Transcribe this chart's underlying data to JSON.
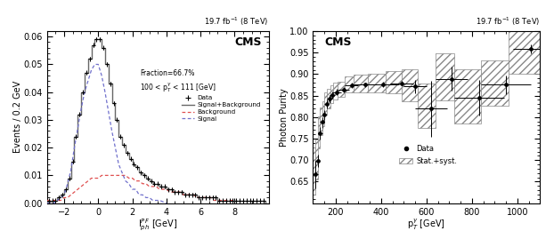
{
  "left": {
    "title": "CMS",
    "lumi": "19.7 fb$^{-1}$ (8 TeV)",
    "annotation_line1": "Fraction=66.7%",
    "annotation_line2": "100 < p$_{T}^{\\gamma}$ < 111 [GeV]",
    "xlabel": "I$_{ph}^{PF}$ [GeV]",
    "ylabel": "Events / 0.2 GeV",
    "xlim": [
      -3,
      10
    ],
    "ylim": [
      0,
      0.062
    ],
    "yticks": [
      0,
      0.01,
      0.02,
      0.03,
      0.04,
      0.05,
      0.06
    ],
    "xticks": [
      -2,
      0,
      2,
      4,
      6,
      8
    ],
    "data_x": [
      -2.9,
      -2.7,
      -2.5,
      -2.3,
      -2.1,
      -1.9,
      -1.7,
      -1.5,
      -1.3,
      -1.1,
      -0.9,
      -0.7,
      -0.5,
      -0.3,
      -0.1,
      0.1,
      0.3,
      0.5,
      0.7,
      0.9,
      1.1,
      1.3,
      1.5,
      1.7,
      1.9,
      2.1,
      2.3,
      2.5,
      2.7,
      2.9,
      3.1,
      3.3,
      3.5,
      3.7,
      3.9,
      4.1,
      4.3,
      4.5,
      4.7,
      4.9,
      5.1,
      5.3,
      5.5,
      5.7,
      5.9,
      6.1,
      6.3,
      6.5,
      6.7,
      6.9,
      7.1,
      7.3,
      7.5,
      7.7,
      7.9,
      8.1,
      8.3,
      8.5,
      8.7,
      8.9,
      9.1,
      9.3,
      9.5,
      9.7
    ],
    "data_y": [
      0.001,
      0.001,
      0.001,
      0.002,
      0.003,
      0.005,
      0.009,
      0.015,
      0.024,
      0.032,
      0.04,
      0.047,
      0.052,
      0.057,
      0.059,
      0.059,
      0.056,
      0.05,
      0.043,
      0.036,
      0.03,
      0.024,
      0.021,
      0.018,
      0.016,
      0.014,
      0.013,
      0.011,
      0.01,
      0.009,
      0.008,
      0.007,
      0.007,
      0.006,
      0.006,
      0.005,
      0.005,
      0.004,
      0.004,
      0.004,
      0.003,
      0.003,
      0.003,
      0.003,
      0.002,
      0.002,
      0.002,
      0.002,
      0.002,
      0.002,
      0.001,
      0.001,
      0.001,
      0.001,
      0.001,
      0.001,
      0.001,
      0.001,
      0.001,
      0.001,
      0.001,
      0.001,
      0.001,
      0.001
    ],
    "sig_bg_bins": [
      -3.0,
      -2.8,
      -2.6,
      -2.4,
      -2.2,
      -2.0,
      -1.8,
      -1.6,
      -1.4,
      -1.2,
      -1.0,
      -0.8,
      -0.6,
      -0.4,
      -0.2,
      0.0,
      0.2,
      0.4,
      0.6,
      0.8,
      1.0,
      1.2,
      1.4,
      1.6,
      1.8,
      2.0,
      2.2,
      2.4,
      2.6,
      2.8,
      3.0,
      3.2,
      3.4,
      3.6,
      3.8,
      4.0,
      4.2,
      4.4,
      4.6,
      4.8,
      5.0,
      5.2,
      5.4,
      5.6,
      5.8,
      6.0,
      6.2,
      6.4,
      6.6,
      6.8,
      7.0,
      7.2,
      7.4,
      7.6,
      7.8,
      8.0,
      8.2,
      8.4,
      8.6,
      8.8,
      9.0,
      9.2,
      9.4,
      9.6,
      9.8
    ],
    "sig_bg_vals": [
      0.0005,
      0.001,
      0.001,
      0.002,
      0.003,
      0.005,
      0.009,
      0.015,
      0.024,
      0.032,
      0.04,
      0.047,
      0.052,
      0.057,
      0.059,
      0.059,
      0.056,
      0.05,
      0.043,
      0.036,
      0.03,
      0.024,
      0.021,
      0.018,
      0.016,
      0.014,
      0.013,
      0.011,
      0.01,
      0.009,
      0.008,
      0.007,
      0.007,
      0.006,
      0.006,
      0.005,
      0.005,
      0.004,
      0.004,
      0.004,
      0.003,
      0.003,
      0.003,
      0.003,
      0.002,
      0.002,
      0.002,
      0.002,
      0.002,
      0.002,
      0.001,
      0.001,
      0.001,
      0.001,
      0.001,
      0.001,
      0.001,
      0.001,
      0.001,
      0.001,
      0.001,
      0.001,
      0.001,
      0.001
    ],
    "bg_x": [
      -3,
      -2.8,
      -2.6,
      -2.4,
      -2.2,
      -2.0,
      -1.8,
      -1.6,
      -1.4,
      -1.2,
      -1.0,
      -0.8,
      -0.6,
      -0.4,
      -0.2,
      0.0,
      0.2,
      0.4,
      0.6,
      0.8,
      1.0,
      1.2,
      1.4,
      1.6,
      1.8,
      2.0,
      2.2,
      2.4,
      2.6,
      2.8,
      3.0,
      3.2,
      3.4,
      3.6,
      3.8,
      4.0,
      4.2,
      4.4,
      4.6,
      4.8,
      5.0,
      5.2,
      5.4,
      5.6,
      5.8,
      6.0,
      6.2,
      6.4,
      6.6,
      6.8,
      7.0,
      7.2,
      7.4,
      7.6,
      7.8,
      8.0
    ],
    "bg_y": [
      0.001,
      0.001,
      0.001,
      0.001,
      0.001,
      0.002,
      0.002,
      0.003,
      0.004,
      0.005,
      0.006,
      0.007,
      0.008,
      0.009,
      0.009,
      0.009,
      0.01,
      0.01,
      0.01,
      0.01,
      0.01,
      0.01,
      0.01,
      0.01,
      0.009,
      0.009,
      0.008,
      0.008,
      0.007,
      0.007,
      0.006,
      0.006,
      0.006,
      0.005,
      0.005,
      0.005,
      0.004,
      0.004,
      0.004,
      0.004,
      0.003,
      0.003,
      0.003,
      0.003,
      0.002,
      0.002,
      0.002,
      0.002,
      0.002,
      0.001,
      0.001,
      0.001,
      0.001,
      0.001,
      0.001,
      0.001
    ],
    "sig_x": [
      -3,
      -2.8,
      -2.6,
      -2.4,
      -2.2,
      -2.0,
      -1.8,
      -1.6,
      -1.4,
      -1.2,
      -1.0,
      -0.8,
      -0.6,
      -0.4,
      -0.2,
      0.0,
      0.2,
      0.4,
      0.6,
      0.8,
      1.0,
      1.2,
      1.4,
      1.6,
      1.8,
      2.0,
      2.2,
      2.4,
      2.6,
      2.8,
      3.0,
      3.2,
      3.4,
      3.6,
      3.8,
      4.0
    ],
    "sig_y": [
      0.0,
      0.0,
      0.0,
      0.001,
      0.002,
      0.003,
      0.007,
      0.012,
      0.02,
      0.027,
      0.034,
      0.04,
      0.044,
      0.048,
      0.05,
      0.05,
      0.046,
      0.04,
      0.033,
      0.026,
      0.02,
      0.014,
      0.011,
      0.008,
      0.007,
      0.005,
      0.005,
      0.003,
      0.003,
      0.002,
      0.002,
      0.001,
      0.001,
      0.001,
      0.0005,
      0.0
    ]
  },
  "right": {
    "title": "CMS",
    "lumi": "19.7 fb$^{-1}$ (8 TeV)",
    "xlabel": "p$_{T}^{\\gamma}$ [GeV]",
    "ylabel": "Photon Purity",
    "xlim": [
      100,
      1100
    ],
    "ylim": [
      0.6,
      1.0
    ],
    "yticks": [
      0.65,
      0.7,
      0.75,
      0.8,
      0.85,
      0.9,
      0.95,
      1.0
    ],
    "xticks": [
      200,
      400,
      600,
      800,
      1000
    ],
    "data_x": [
      110,
      120,
      130,
      140,
      150,
      160,
      172,
      185,
      205,
      235,
      270,
      330,
      410,
      490,
      550,
      620,
      710,
      830,
      950,
      1060
    ],
    "data_y": [
      0.667,
      0.698,
      0.763,
      0.789,
      0.806,
      0.831,
      0.842,
      0.851,
      0.858,
      0.863,
      0.874,
      0.875,
      0.876,
      0.879,
      0.871,
      0.82,
      0.889,
      0.845,
      0.875,
      0.958
    ],
    "data_xerr_lo": [
      10,
      10,
      10,
      10,
      10,
      10,
      12,
      12,
      20,
      25,
      30,
      50,
      70,
      50,
      50,
      70,
      70,
      110,
      110,
      80
    ],
    "data_xerr_hi": [
      10,
      10,
      10,
      10,
      10,
      10,
      12,
      12,
      20,
      25,
      30,
      50,
      70,
      50,
      50,
      70,
      70,
      110,
      110,
      80
    ],
    "data_yerr_lo": [
      0.032,
      0.015,
      0.014,
      0.014,
      0.012,
      0.01,
      0.009,
      0.009,
      0.007,
      0.006,
      0.006,
      0.006,
      0.006,
      0.006,
      0.016,
      0.065,
      0.028,
      0.042,
      0.022,
      0.01
    ],
    "data_yerr_hi": [
      0.032,
      0.015,
      0.014,
      0.01,
      0.01,
      0.009,
      0.009,
      0.009,
      0.007,
      0.006,
      0.006,
      0.006,
      0.006,
      0.006,
      0.016,
      0.065,
      0.028,
      0.042,
      0.022,
      0.01
    ],
    "band_x": [
      100,
      110,
      120,
      130,
      140,
      150,
      160,
      175,
      190,
      210,
      240,
      280,
      340,
      420,
      490,
      560,
      640,
      720,
      840,
      960
    ],
    "band_x2": [
      110,
      120,
      130,
      140,
      150,
      160,
      175,
      190,
      210,
      240,
      280,
      340,
      420,
      490,
      560,
      640,
      720,
      840,
      960,
      1150
    ],
    "band_lo": [
      0.62,
      0.655,
      0.728,
      0.758,
      0.778,
      0.808,
      0.82,
      0.832,
      0.84,
      0.848,
      0.858,
      0.858,
      0.858,
      0.855,
      0.836,
      0.775,
      0.838,
      0.785,
      0.826,
      0.9
    ],
    "band_hi": [
      0.73,
      0.748,
      0.802,
      0.822,
      0.836,
      0.858,
      0.866,
      0.874,
      0.88,
      0.882,
      0.895,
      0.898,
      0.9,
      0.906,
      0.912,
      0.878,
      0.948,
      0.912,
      0.932,
      1.002
    ]
  }
}
